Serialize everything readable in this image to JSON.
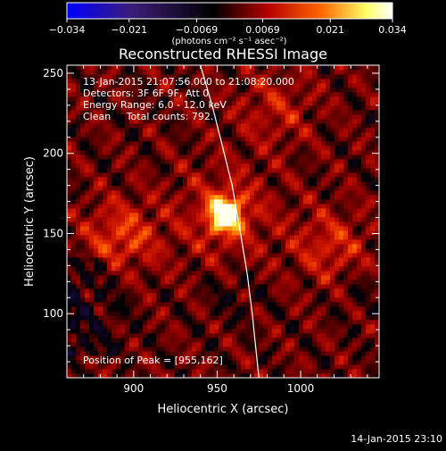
{
  "chart_data": {
    "type": "heatmap",
    "title": "Reconstructed RHESSI Image",
    "xlabel": "Heliocentric X (arcsec)",
    "ylabel": "Heliocentric Y (arcsec)",
    "xlim": [
      860,
      1047
    ],
    "ylim": [
      60,
      255
    ],
    "x_ticks": [
      900,
      950,
      1000
    ],
    "x_tick_labels": [
      "900",
      "950",
      "1000"
    ],
    "y_ticks": [
      100,
      150,
      200,
      250
    ],
    "y_tick_labels": [
      "100",
      "150",
      "200",
      "250"
    ],
    "colorbar": {
      "min": -0.034,
      "max": 0.034,
      "ticks": [
        -0.034,
        -0.021,
        -0.0069,
        0.0069,
        0.021,
        0.034
      ],
      "tick_labels": [
        "−0.034",
        "−0.021",
        "−0.0069",
        "0.0069",
        "0.021",
        "0.034"
      ],
      "unit_label": "(photons cm⁻² s⁻¹ asec⁻²)",
      "colors": [
        "#0000ff",
        "#000000",
        "#b80000",
        "#ff6600",
        "#ffff66",
        "#ffffff"
      ]
    },
    "annotations": [
      "13-Jan-2015 21:07:56.000 to 21:08:20.000",
      "Detectors: 3F 6F 9F, Att 0",
      "Energy Range: 6.0 - 12.0 keV",
      "Clean     Total counts: 792."
    ],
    "peak_label": "Position of Peak = [955,162]",
    "peak": {
      "x": 955,
      "y": 162,
      "value": 0.034
    },
    "secondary_sources": [
      {
        "x": 893,
        "y": 148,
        "value": 0.02
      },
      {
        "x": 1018,
        "y": 142,
        "value": 0.016
      },
      {
        "x": 985,
        "y": 228,
        "value": 0.012
      }
    ],
    "negative_region": {
      "x_range": [
        860,
        900
      ],
      "y_range": [
        95,
        130
      ]
    },
    "limb_curve": [
      [
        940,
        255
      ],
      [
        947,
        230
      ],
      [
        953,
        205
      ],
      [
        959,
        180
      ],
      [
        964,
        150
      ],
      [
        968,
        125
      ],
      [
        971,
        100
      ],
      [
        973,
        80
      ],
      [
        975,
        60
      ]
    ],
    "limb_color": "#ffffff",
    "timestamp": "14-Jan-2015 23:10"
  }
}
